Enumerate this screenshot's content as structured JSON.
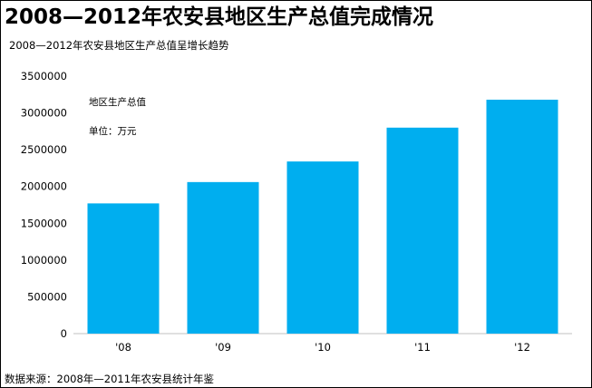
{
  "title": "2008—2012年农安县地区生产总值完成情况",
  "subtitle": "2008—2012年农安县地区生产总值呈增长趋势",
  "source": "数据来源：2008年—2011年农安县统计年鉴",
  "colors": {
    "bar": "#00AEEF",
    "axis": "#C0C0C0"
  },
  "chart_data": {
    "type": "bar",
    "categories": [
      "'08",
      "'09",
      "'10",
      "'11",
      "'12"
    ],
    "series": [
      {
        "name": "地区生产总值",
        "values": [
          1770000,
          2060000,
          2340000,
          2800000,
          3180000
        ]
      }
    ],
    "unit_note": "单位：万元",
    "ylim": [
      0,
      3500000
    ],
    "yticks": [
      0,
      500000,
      1000000,
      1500000,
      2000000,
      2500000,
      3000000,
      3500000
    ],
    "grid": false,
    "legend": "top-left"
  }
}
